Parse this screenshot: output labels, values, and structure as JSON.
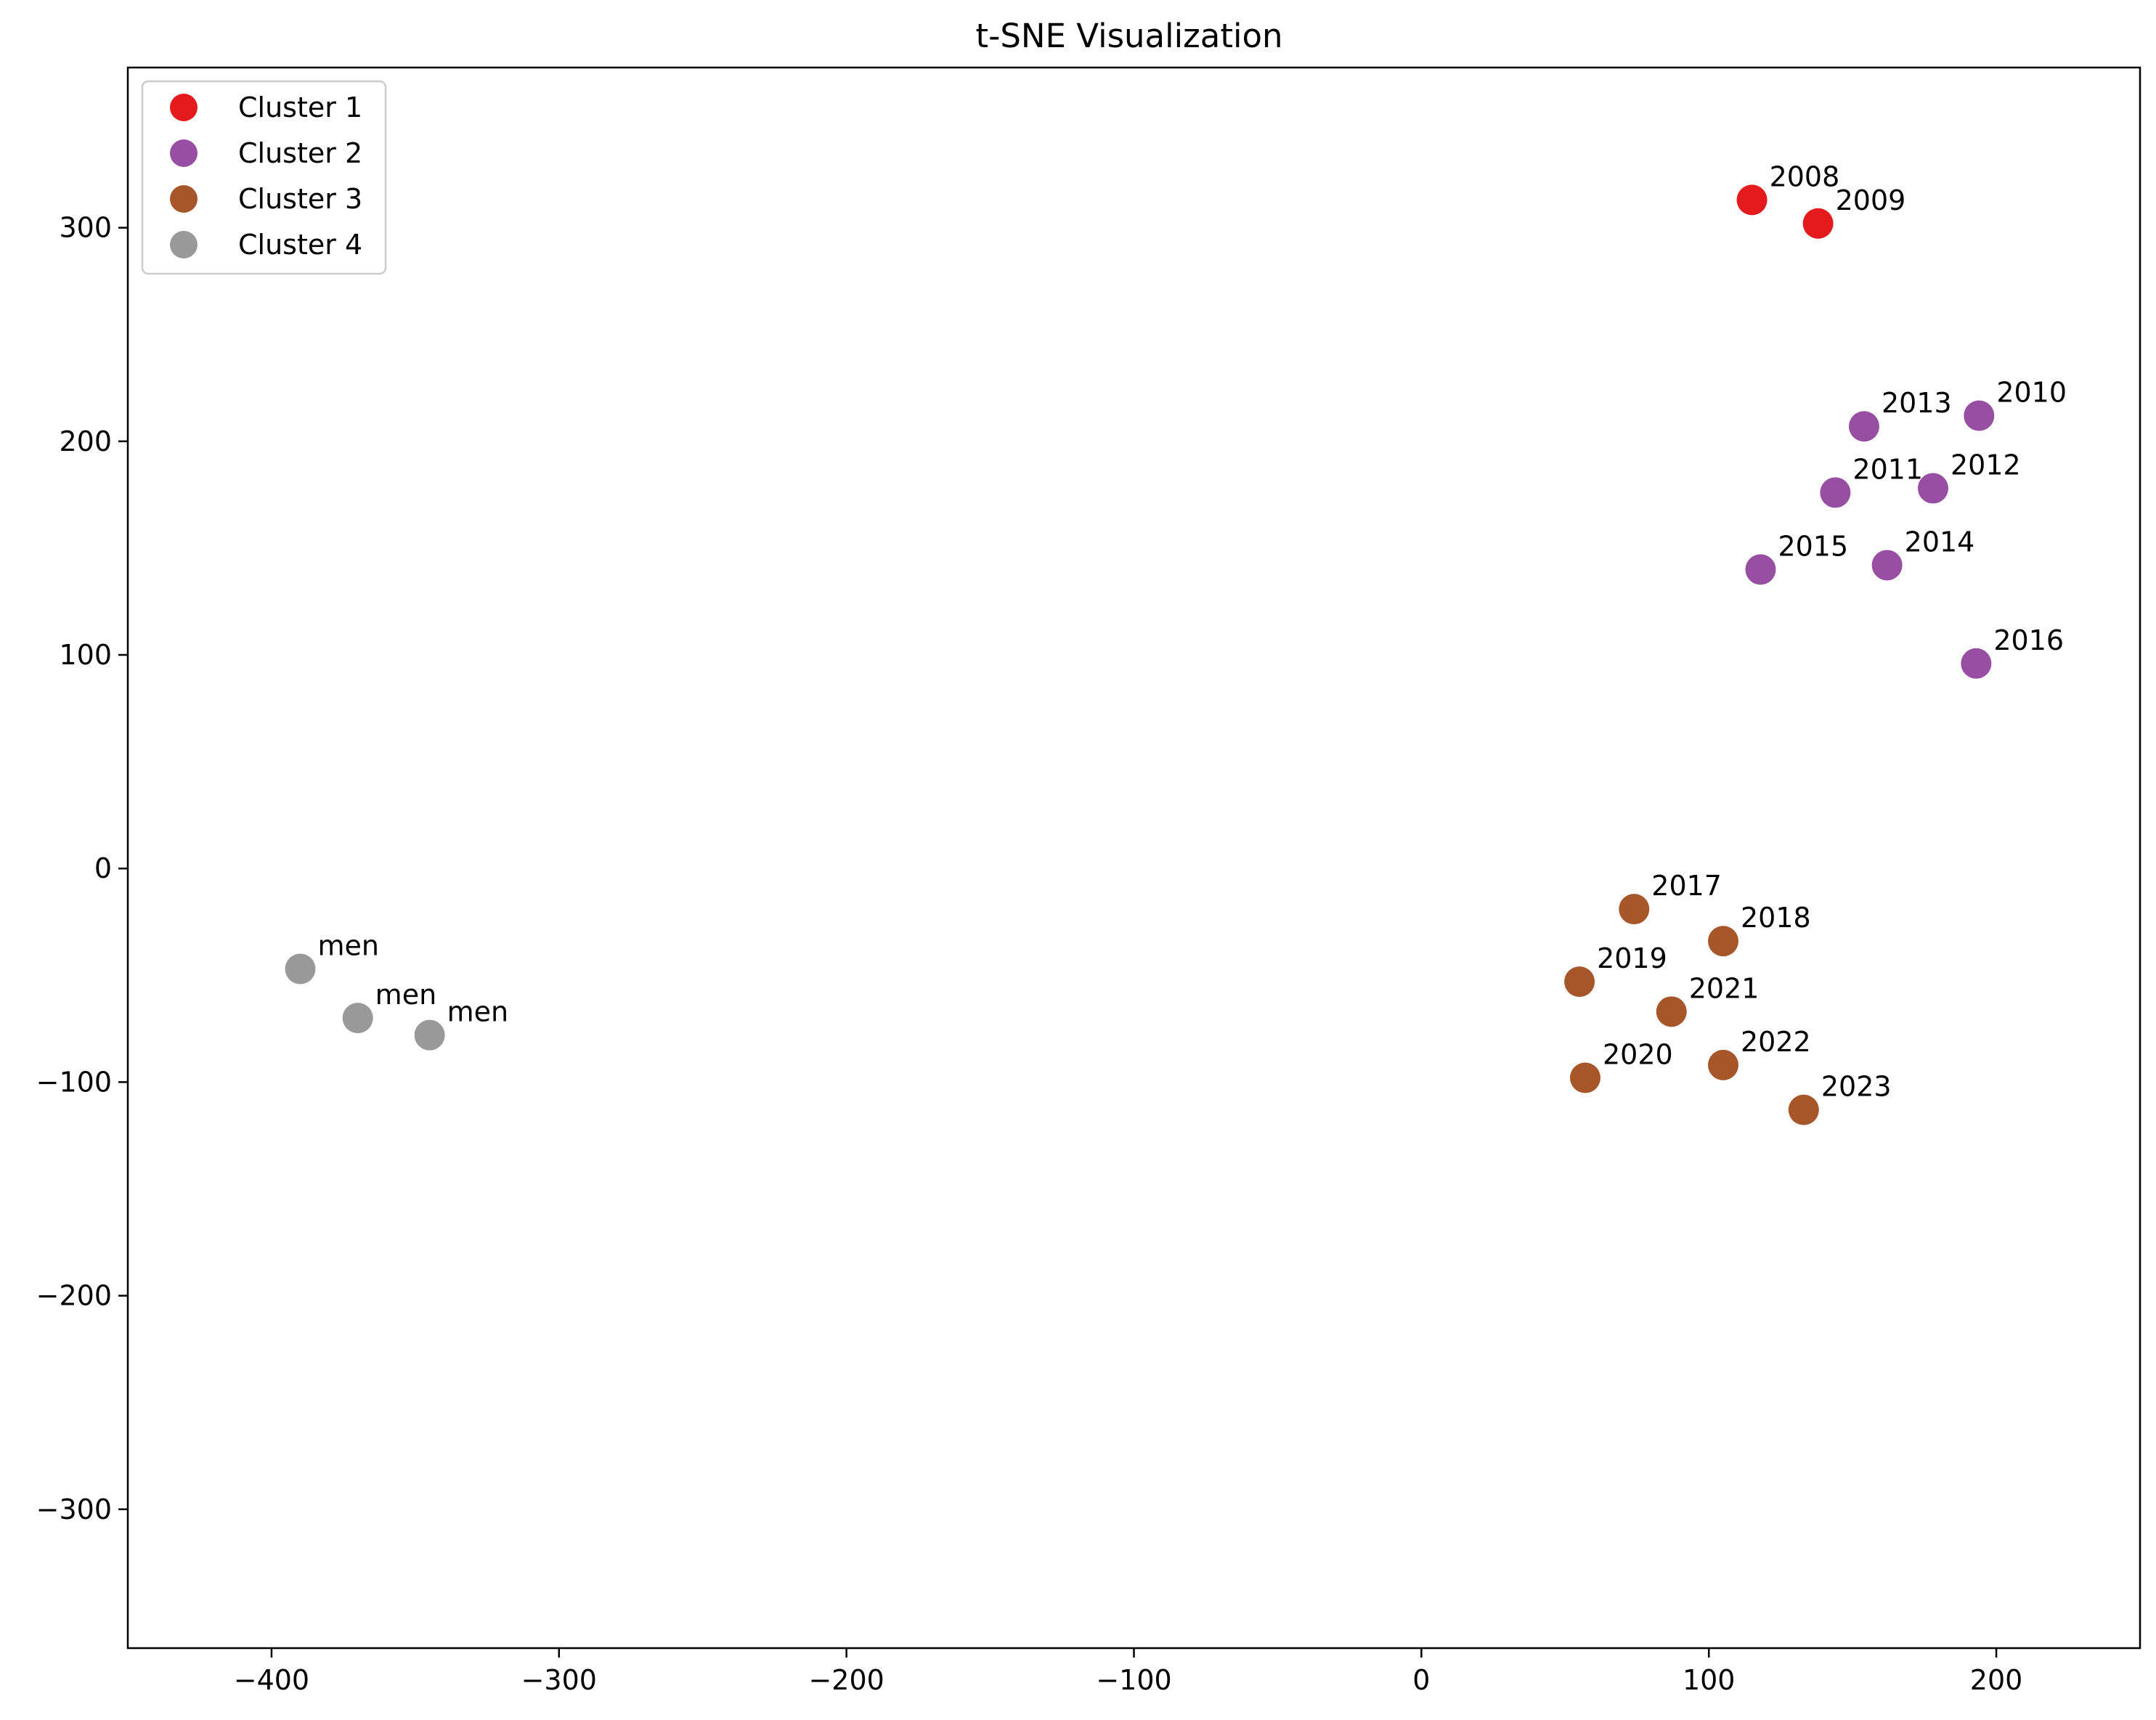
{
  "chart_data": {
    "type": "scatter",
    "title": "t-SNE Visualization",
    "xlabel": "",
    "ylabel": "",
    "xlim": [
      -450,
      250
    ],
    "ylim": [
      -365,
      375
    ],
    "xticks": [
      -400,
      -300,
      -200,
      -100,
      0,
      100,
      200
    ],
    "yticks": [
      -300,
      -200,
      -100,
      0,
      100,
      200,
      300
    ],
    "grid": false,
    "legend_position": "top-left",
    "series": [
      {
        "name": "Cluster 1",
        "color": "#e41a1c",
        "points": [
          {
            "x": 115,
            "y": 313,
            "label": "2008"
          },
          {
            "x": 138,
            "y": 302,
            "label": "2009"
          }
        ]
      },
      {
        "name": "Cluster 2",
        "color": "#984ea3",
        "points": [
          {
            "x": 194,
            "y": 212,
            "label": "2010"
          },
          {
            "x": 144,
            "y": 176,
            "label": "2011"
          },
          {
            "x": 178,
            "y": 178,
            "label": "2012"
          },
          {
            "x": 154,
            "y": 207,
            "label": "2013"
          },
          {
            "x": 162,
            "y": 142,
            "label": "2014"
          },
          {
            "x": 118,
            "y": 140,
            "label": "2015"
          },
          {
            "x": 193,
            "y": 96,
            "label": "2016"
          }
        ]
      },
      {
        "name": "Cluster 3",
        "color": "#a65628",
        "points": [
          {
            "x": 74,
            "y": -19,
            "label": "2017"
          },
          {
            "x": 105,
            "y": -34,
            "label": "2018"
          },
          {
            "x": 55,
            "y": -53,
            "label": "2019"
          },
          {
            "x": 57,
            "y": -98,
            "label": "2020"
          },
          {
            "x": 87,
            "y": -67,
            "label": "2021"
          },
          {
            "x": 105,
            "y": -92,
            "label": "2022"
          },
          {
            "x": 133,
            "y": -113,
            "label": "2023"
          }
        ]
      },
      {
        "name": "Cluster 4",
        "color": "#999999",
        "points": [
          {
            "x": -390,
            "y": -47,
            "label": "men"
          },
          {
            "x": -370,
            "y": -70,
            "label": "men"
          },
          {
            "x": -345,
            "y": -78,
            "label": "men"
          }
        ]
      }
    ]
  }
}
